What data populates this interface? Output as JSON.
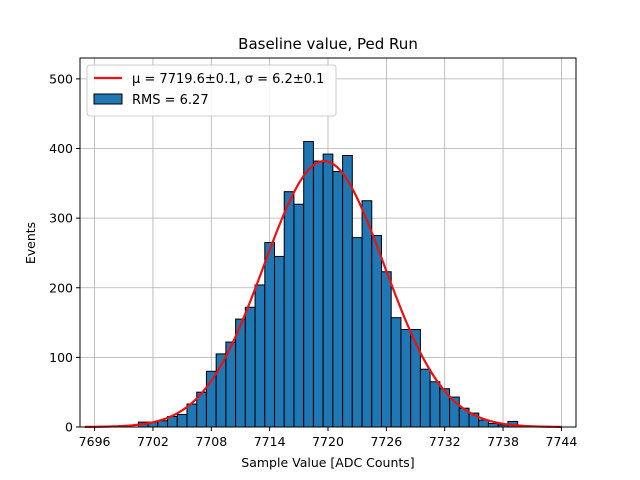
{
  "chart_data": {
    "type": "bar",
    "title": "Baseline value, Ped Run",
    "xlabel": "Sample Value [ADC Counts]",
    "ylabel": "Events",
    "xlim": [
      7694.5,
      7745.5
    ],
    "ylim": [
      0,
      530
    ],
    "x_ticks": [
      7696,
      7702,
      7708,
      7714,
      7720,
      7726,
      7732,
      7738,
      7744
    ],
    "y_ticks": [
      0,
      100,
      200,
      300,
      400,
      500
    ],
    "grid": true,
    "legend_position": "top-left",
    "bar_color": "#1f77b4",
    "fit_color": "#ee1111",
    "histogram": {
      "name": "RMS = 6.27",
      "bin_width": 1,
      "bins": [
        7701,
        7702,
        7703,
        7704,
        7705,
        7706,
        7707,
        7708,
        7709,
        7710,
        7711,
        7712,
        7713,
        7714,
        7715,
        7716,
        7717,
        7718,
        7719,
        7720,
        7721,
        7722,
        7723,
        7724,
        7725,
        7726,
        7727,
        7728,
        7729,
        7730,
        7731,
        7732,
        7733,
        7734,
        7735,
        7736,
        7737,
        7738,
        7739
      ],
      "counts": [
        7,
        7,
        9,
        15,
        18,
        33,
        50,
        80,
        105,
        122,
        155,
        172,
        204,
        265,
        245,
        338,
        320,
        410,
        382,
        392,
        367,
        390,
        272,
        325,
        275,
        223,
        157,
        140,
        140,
        83,
        65,
        55,
        43,
        27,
        20,
        10,
        5,
        3,
        8
      ]
    },
    "fit": {
      "name": "μ = 7719.6±0.1, σ = 6.2±0.1",
      "mu": 7719.6,
      "sigma": 6.2,
      "amplitude": 382,
      "x_range": [
        7695,
        7744
      ]
    }
  }
}
